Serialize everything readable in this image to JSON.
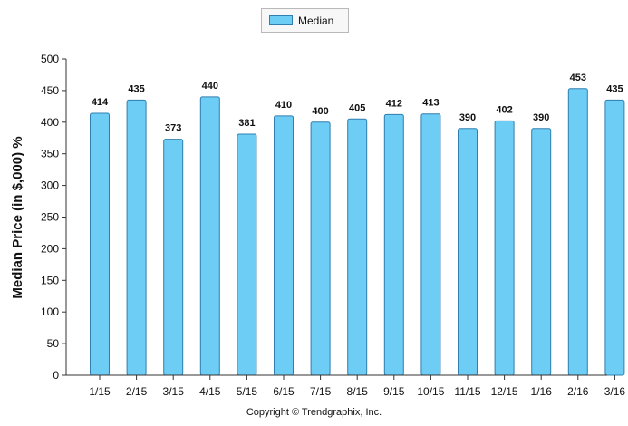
{
  "legend": {
    "label": "Median",
    "icon": "legend-swatch"
  },
  "copyright": "Copyright © Trendgraphix, Inc.",
  "colors": {
    "bar_fill": "#6dcdf4",
    "bar_stroke": "#2f7fb0",
    "axis": "#333333",
    "grid": "#d0d0d0"
  },
  "chart_data": {
    "type": "bar",
    "title": "",
    "xlabel": "",
    "ylabel": "Median Price (in $,000) %",
    "categories": [
      "1/15",
      "2/15",
      "3/15",
      "4/15",
      "5/15",
      "6/15",
      "7/15",
      "8/15",
      "9/15",
      "10/15",
      "11/15",
      "12/15",
      "1/16",
      "2/16",
      "3/16"
    ],
    "series": [
      {
        "name": "Median",
        "values": [
          414,
          435,
          373,
          440,
          381,
          410,
          400,
          405,
          412,
          413,
          390,
          402,
          390,
          453,
          435
        ]
      }
    ],
    "ylim": [
      0,
      500
    ],
    "yticks": [
      "0",
      "50",
      "100",
      "150",
      "200",
      "250",
      "300",
      "350",
      "400",
      "450",
      "500"
    ],
    "data_labels": true,
    "grid": false,
    "legend_position": "top-center"
  }
}
